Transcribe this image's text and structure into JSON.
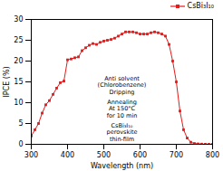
{
  "chart_data": {
    "type": "line",
    "x": [
      300,
      310,
      320,
      330,
      340,
      350,
      360,
      370,
      380,
      390,
      400,
      410,
      420,
      430,
      440,
      450,
      460,
      470,
      480,
      490,
      500,
      510,
      520,
      530,
      540,
      550,
      560,
      570,
      580,
      590,
      600,
      610,
      620,
      630,
      640,
      650,
      660,
      670,
      680,
      690,
      700,
      710,
      720,
      730,
      740,
      750,
      760,
      770,
      780,
      790,
      800
    ],
    "series": [
      {
        "name": "CsBi₃I₁₀",
        "color": "#e8191a",
        "marker": "square",
        "values": [
          2.0,
          3.5,
          5.0,
          7.5,
          9.5,
          10.5,
          12.0,
          13.5,
          14.8,
          15.2,
          20.3,
          20.5,
          20.8,
          21.0,
          22.5,
          23.2,
          23.8,
          24.2,
          24.0,
          24.5,
          24.8,
          25.0,
          25.2,
          25.5,
          26.0,
          26.5,
          27.0,
          27.0,
          27.0,
          26.8,
          26.5,
          26.5,
          26.5,
          26.8,
          27.0,
          26.8,
          26.5,
          26.0,
          24.0,
          20.0,
          15.0,
          8.0,
          3.5,
          1.5,
          0.5,
          0.2,
          0.1,
          0.05,
          0.02,
          0.01,
          0.0
        ]
      }
    ],
    "xlabel": "Wavelength (nm)",
    "ylabel": "IPCE (%)",
    "xlim": [
      300,
      800
    ],
    "ylim": [
      0,
      30
    ],
    "xticks": [
      300,
      400,
      500,
      600,
      700,
      800
    ],
    "yticks": [
      0,
      5,
      10,
      15,
      20,
      25,
      30
    ],
    "legend": "upper right",
    "grid": false,
    "annotations": [
      "Anti solvent\n(Chlorobenzene)\nDripping",
      "Annealing\nAt 150°C\nfor 10 min",
      "CsBi₃I₁₀\nperovskite\nthin-film"
    ]
  }
}
